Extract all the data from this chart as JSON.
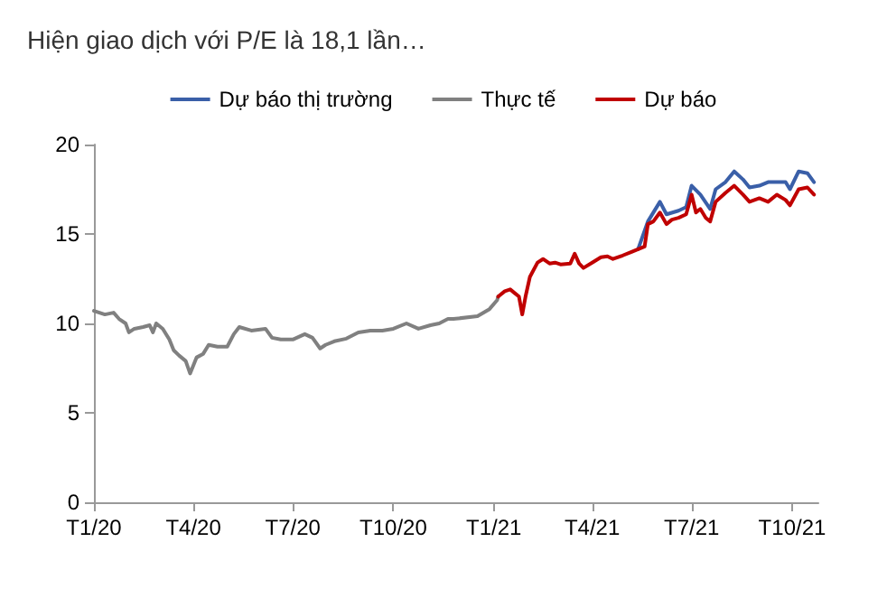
{
  "chart_data": {
    "type": "line",
    "title": "Hiện giao dịch với P/E là 18,1 lần…",
    "xlim": [
      "2020-01-01",
      "2021-10-25"
    ],
    "xticks": [
      {
        "value": "2020-01-01",
        "label": "T1/20"
      },
      {
        "value": "2020-04-01",
        "label": "T4/20"
      },
      {
        "value": "2020-07-01",
        "label": "T7/20"
      },
      {
        "value": "2020-10-01",
        "label": "T10/20"
      },
      {
        "value": "2021-01-01",
        "label": "T1/21"
      },
      {
        "value": "2021-04-01",
        "label": "T4/21"
      },
      {
        "value": "2021-07-01",
        "label": "T7/21"
      },
      {
        "value": "2021-10-01",
        "label": "T10/21"
      }
    ],
    "ylim": [
      0,
      20
    ],
    "yticks": [
      0,
      5,
      10,
      15,
      20
    ],
    "grid": false,
    "legend": "top",
    "marker": "none",
    "line_style": "solid",
    "series": [
      {
        "name": "Dự báo thị trường",
        "color": "#3a5fa8",
        "x": [
          "2021-05-13",
          "2021-05-22",
          "2021-06-02",
          "2021-06-08",
          "2021-06-19",
          "2021-06-26",
          "2021-07-01",
          "2021-07-09",
          "2021-07-18",
          "2021-07-23",
          "2021-08-01",
          "2021-08-09",
          "2021-08-17",
          "2021-08-23",
          "2021-09-01",
          "2021-09-09",
          "2021-09-17",
          "2021-09-25",
          "2021-09-29",
          "2021-10-07",
          "2021-10-15",
          "2021-10-21"
        ],
        "values": [
          14.15,
          15.7,
          16.8,
          16.1,
          16.3,
          16.5,
          17.7,
          17.2,
          16.4,
          17.5,
          17.9,
          18.5,
          18.05,
          17.6,
          17.7,
          17.9,
          17.9,
          17.9,
          17.5,
          18.5,
          18.4,
          17.9
        ]
      },
      {
        "name": "Thực tế",
        "color": "#808080",
        "x": [
          "2020-01-01",
          "2020-01-11",
          "2020-01-19",
          "2020-01-24",
          "2020-01-30",
          "2020-02-02",
          "2020-02-07",
          "2020-02-15",
          "2020-02-21",
          "2020-02-24",
          "2020-02-27",
          "2020-03-04",
          "2020-03-10",
          "2020-03-14",
          "2020-03-19",
          "2020-03-25",
          "2020-03-29",
          "2020-04-04",
          "2020-04-10",
          "2020-04-15",
          "2020-04-23",
          "2020-05-02",
          "2020-05-08",
          "2020-05-13",
          "2020-05-24",
          "2020-06-06",
          "2020-06-12",
          "2020-06-20",
          "2020-07-01",
          "2020-07-12",
          "2020-07-19",
          "2020-07-26",
          "2020-07-31",
          "2020-08-08",
          "2020-08-19",
          "2020-08-30",
          "2020-09-10",
          "2020-09-21",
          "2020-10-01",
          "2020-10-13",
          "2020-10-24",
          "2020-11-04",
          "2020-11-12",
          "2020-11-20",
          "2020-11-25",
          "2020-12-17",
          "2020-12-28",
          "2021-01-04",
          "2021-01-05"
        ],
        "values": [
          10.7,
          10.5,
          10.6,
          10.25,
          10.0,
          9.5,
          9.7,
          9.8,
          9.9,
          9.5,
          10.0,
          9.7,
          9.1,
          8.5,
          8.2,
          7.9,
          7.2,
          8.1,
          8.3,
          8.8,
          8.7,
          8.7,
          9.4,
          9.8,
          9.6,
          9.7,
          9.2,
          9.1,
          9.1,
          9.4,
          9.2,
          8.6,
          8.8,
          9.0,
          9.15,
          9.5,
          9.6,
          9.6,
          9.7,
          10.0,
          9.7,
          9.9,
          10.0,
          10.25,
          10.25,
          10.4,
          10.8,
          11.3,
          11.5
        ]
      },
      {
        "name": "Dự báo",
        "color": "#c00000",
        "x": [
          "2021-01-05",
          "2021-01-11",
          "2021-01-16",
          "2021-01-20",
          "2021-01-24",
          "2021-01-27",
          "2021-01-30",
          "2021-02-03",
          "2021-02-10",
          "2021-02-15",
          "2021-02-21",
          "2021-02-26",
          "2021-03-03",
          "2021-03-12",
          "2021-03-16",
          "2021-03-20",
          "2021-03-24",
          "2021-04-01",
          "2021-04-09",
          "2021-04-15",
          "2021-04-20",
          "2021-04-29",
          "2021-05-07",
          "2021-05-13",
          "2021-05-19",
          "2021-05-22",
          "2021-05-27",
          "2021-06-02",
          "2021-06-08",
          "2021-06-13",
          "2021-06-19",
          "2021-06-26",
          "2021-07-01",
          "2021-07-05",
          "2021-07-09",
          "2021-07-14",
          "2021-07-18",
          "2021-07-23",
          "2021-08-01",
          "2021-08-09",
          "2021-08-17",
          "2021-08-23",
          "2021-09-01",
          "2021-09-09",
          "2021-09-17",
          "2021-09-25",
          "2021-09-29",
          "2021-10-07",
          "2021-10-15",
          "2021-10-21"
        ],
        "values": [
          11.5,
          11.8,
          11.9,
          11.7,
          11.5,
          10.5,
          11.5,
          12.6,
          13.4,
          13.6,
          13.35,
          13.4,
          13.3,
          13.35,
          13.9,
          13.35,
          13.1,
          13.4,
          13.7,
          13.75,
          13.6,
          13.8,
          14.0,
          14.15,
          14.3,
          15.55,
          15.7,
          16.2,
          15.55,
          15.8,
          15.9,
          16.1,
          17.2,
          16.2,
          16.4,
          15.9,
          15.7,
          16.8,
          17.3,
          17.7,
          17.2,
          16.8,
          17.0,
          16.8,
          17.2,
          16.9,
          16.6,
          17.5,
          17.6,
          17.2
        ]
      }
    ]
  }
}
